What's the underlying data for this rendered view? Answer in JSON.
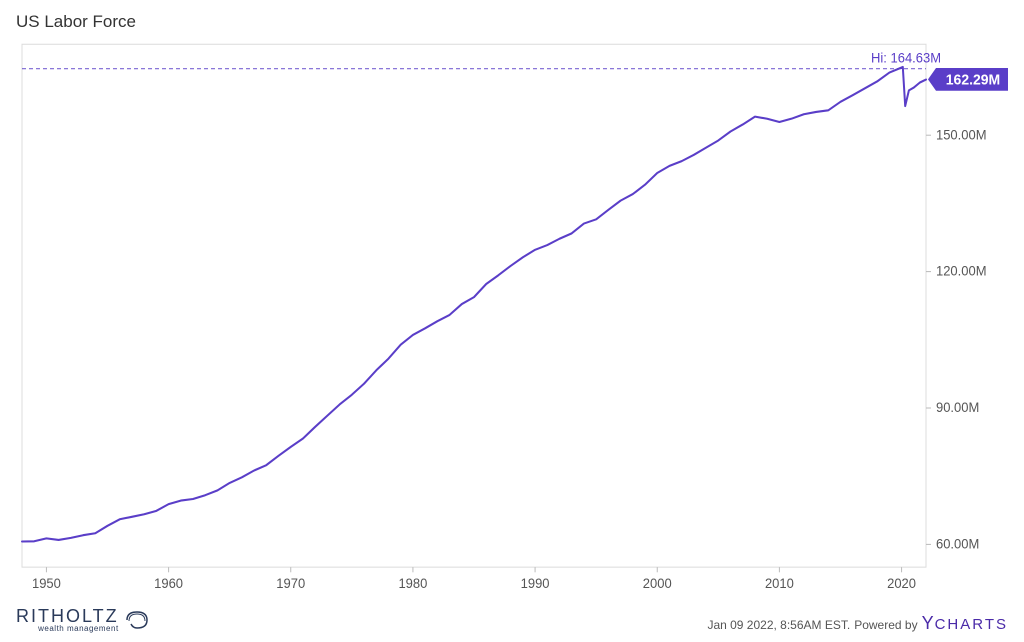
{
  "title": "US Labor Force",
  "chart": {
    "type": "line",
    "line_color": "#5a3ec8",
    "line_width": 2,
    "background_color": "#ffffff",
    "border_color": "#dcdcdc",
    "x_axis": {
      "min": 1948,
      "max": 2022,
      "ticks": [
        1950,
        1960,
        1970,
        1980,
        1990,
        2000,
        2010,
        2020
      ],
      "tick_labels": [
        "1950",
        "1960",
        "1970",
        "1980",
        "1990",
        "2000",
        "2010",
        "2020"
      ],
      "label_color": "#555555",
      "label_fontsize": 13
    },
    "y_axis": {
      "min": 55,
      "max": 170,
      "ticks": [
        60,
        90,
        120,
        150
      ],
      "tick_labels": [
        "60.00M",
        "90.00M",
        "120.00M",
        "150.00M"
      ],
      "label_color": "#555555",
      "label_fontsize": 13
    },
    "hi_marker": {
      "label": "Hi: 164.63M",
      "year": 2020.1,
      "value": 164.63,
      "color": "#5a3ec8",
      "dashed_line": true
    },
    "last_value_flag": {
      "label": "162.29M",
      "value": 162.29,
      "bg_color": "#5a3ec8",
      "text_color": "#ffffff",
      "fontsize": 14
    },
    "series": [
      {
        "x": 1948,
        "y": 60.5
      },
      {
        "x": 1949,
        "y": 60.8
      },
      {
        "x": 1950,
        "y": 61.2
      },
      {
        "x": 1951,
        "y": 61.0
      },
      {
        "x": 1952,
        "y": 61.4
      },
      {
        "x": 1953,
        "y": 62.0
      },
      {
        "x": 1954,
        "y": 62.5
      },
      {
        "x": 1955,
        "y": 64.0
      },
      {
        "x": 1956,
        "y": 65.2
      },
      {
        "x": 1957,
        "y": 65.8
      },
      {
        "x": 1958,
        "y": 66.5
      },
      {
        "x": 1959,
        "y": 67.2
      },
      {
        "x": 1960,
        "y": 68.5
      },
      {
        "x": 1961,
        "y": 69.5
      },
      {
        "x": 1962,
        "y": 69.8
      },
      {
        "x": 1963,
        "y": 70.8
      },
      {
        "x": 1964,
        "y": 72.0
      },
      {
        "x": 1965,
        "y": 73.5
      },
      {
        "x": 1966,
        "y": 74.8
      },
      {
        "x": 1967,
        "y": 76.2
      },
      {
        "x": 1968,
        "y": 77.5
      },
      {
        "x": 1969,
        "y": 79.5
      },
      {
        "x": 1970,
        "y": 81.5
      },
      {
        "x": 1971,
        "y": 83.0
      },
      {
        "x": 1972,
        "y": 85.5
      },
      {
        "x": 1973,
        "y": 88.0
      },
      {
        "x": 1974,
        "y": 90.5
      },
      {
        "x": 1975,
        "y": 92.5
      },
      {
        "x": 1976,
        "y": 95.0
      },
      {
        "x": 1977,
        "y": 98.0
      },
      {
        "x": 1978,
        "y": 101.0
      },
      {
        "x": 1979,
        "y": 104.0
      },
      {
        "x": 1980,
        "y": 106.0
      },
      {
        "x": 1981,
        "y": 107.5
      },
      {
        "x": 1982,
        "y": 109.0
      },
      {
        "x": 1983,
        "y": 110.5
      },
      {
        "x": 1984,
        "y": 113.0
      },
      {
        "x": 1985,
        "y": 114.5
      },
      {
        "x": 1986,
        "y": 117.0
      },
      {
        "x": 1987,
        "y": 119.0
      },
      {
        "x": 1988,
        "y": 121.0
      },
      {
        "x": 1989,
        "y": 123.0
      },
      {
        "x": 1990,
        "y": 124.5
      },
      {
        "x": 1991,
        "y": 125.5
      },
      {
        "x": 1992,
        "y": 127.0
      },
      {
        "x": 1993,
        "y": 128.5
      },
      {
        "x": 1994,
        "y": 130.5
      },
      {
        "x": 1995,
        "y": 131.5
      },
      {
        "x": 1996,
        "y": 133.5
      },
      {
        "x": 1997,
        "y": 135.5
      },
      {
        "x": 1998,
        "y": 137.0
      },
      {
        "x": 1999,
        "y": 139.0
      },
      {
        "x": 2000,
        "y": 141.5
      },
      {
        "x": 2001,
        "y": 143.0
      },
      {
        "x": 2002,
        "y": 144.0
      },
      {
        "x": 2003,
        "y": 145.5
      },
      {
        "x": 2004,
        "y": 147.0
      },
      {
        "x": 2005,
        "y": 148.5
      },
      {
        "x": 2006,
        "y": 150.5
      },
      {
        "x": 2007,
        "y": 152.0
      },
      {
        "x": 2008,
        "y": 154.0
      },
      {
        "x": 2009,
        "y": 153.5
      },
      {
        "x": 2010,
        "y": 153.0
      },
      {
        "x": 2011,
        "y": 153.5
      },
      {
        "x": 2012,
        "y": 154.5
      },
      {
        "x": 2013,
        "y": 155.0
      },
      {
        "x": 2014,
        "y": 155.5
      },
      {
        "x": 2015,
        "y": 157.0
      },
      {
        "x": 2016,
        "y": 158.5
      },
      {
        "x": 2017,
        "y": 160.0
      },
      {
        "x": 2018,
        "y": 161.5
      },
      {
        "x": 2019,
        "y": 163.5
      },
      {
        "x": 2020.1,
        "y": 164.63
      },
      {
        "x": 2020.3,
        "y": 156.0
      },
      {
        "x": 2020.6,
        "y": 159.5
      },
      {
        "x": 2021,
        "y": 160.5
      },
      {
        "x": 2021.5,
        "y": 161.5
      },
      {
        "x": 2022,
        "y": 162.29
      }
    ]
  },
  "footer": {
    "left_logo_main": "RITHOLTZ",
    "left_logo_sub": "wealth management",
    "timestamp": "Jan 09 2022, 8:56AM EST.",
    "powered_by": "Powered by",
    "right_logo": "CHARTS",
    "right_logo_prefix": "Y"
  }
}
